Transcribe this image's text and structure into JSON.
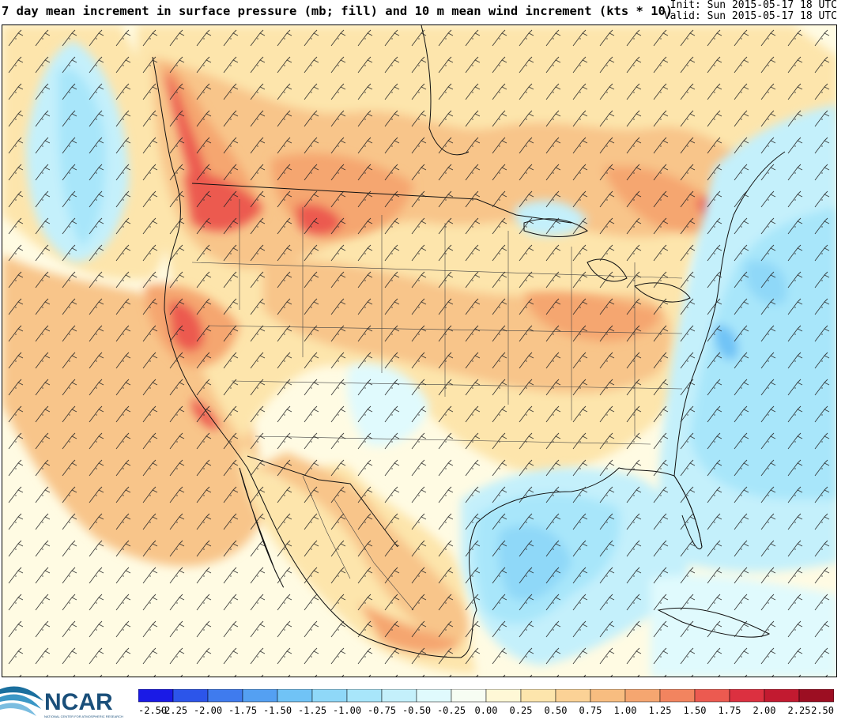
{
  "header": {
    "title": "7 day mean increment in surface pressure (mb; fill) and 10 m mean wind increment (kts * 10)",
    "init": "Init: Sun 2015-05-17 18 UTC",
    "valid": "Valid: Sun 2015-05-17 18 UTC"
  },
  "logo": {
    "text": "NCAR",
    "subtext": "NATIONAL CENTER FOR ATMOSPHERIC RESEARCH"
  },
  "colorbar": {
    "labels": [
      "-2.50",
      "-2.25",
      "-2.00",
      "-1.75",
      "-1.50",
      "-1.25",
      "-1.00",
      "-0.75",
      "-0.50",
      "-0.25",
      "0.00",
      "0.25",
      "0.50",
      "0.75",
      "1.00",
      "1.25",
      "1.50",
      "1.75",
      "2.00",
      "2.25",
      "2.50"
    ],
    "colors": [
      "#1a1ae6",
      "#2c55ea",
      "#3f7bee",
      "#54a0f2",
      "#70c3f6",
      "#8fd8f8",
      "#a8e6fa",
      "#c4f0fb",
      "#e0fafd",
      "#f7fdf3",
      "#fff8d6",
      "#fde5ac",
      "#fbd296",
      "#f8bd80",
      "#f5a670",
      "#f2845f",
      "#ec5a50",
      "#dc3040",
      "#c21a30",
      "#9c0e22"
    ]
  },
  "map": {
    "fill_colors": {
      "background": "#fffbe3",
      "light_orange": "#fde5ac",
      "orange": "#f8c58a",
      "dark_orange": "#f5a670",
      "red": "#ec5a50",
      "deep_red": "#dc3040",
      "light_blue": "#c4f0fb",
      "blue": "#a8e6fa",
      "mid_blue": "#8fd8f8",
      "dark_blue": "#70c3f6"
    }
  }
}
